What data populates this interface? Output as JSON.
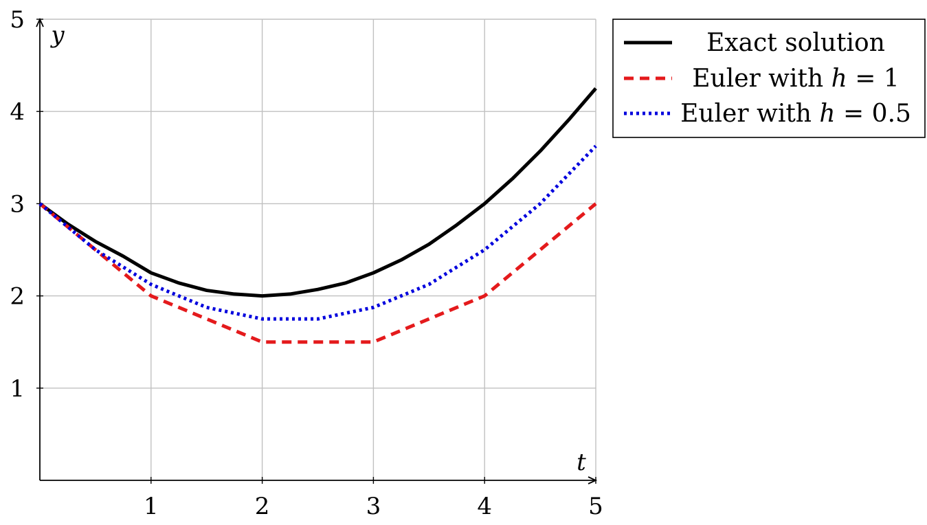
{
  "chart_data": {
    "type": "line",
    "xlabel": "t",
    "ylabel": "y",
    "xlim": [
      0,
      5
    ],
    "ylim": [
      0,
      5
    ],
    "x_ticks": [
      1,
      2,
      3,
      4,
      5
    ],
    "y_ticks": [
      1,
      2,
      3,
      4,
      5
    ],
    "x_tick_labels": [
      "1",
      "2",
      "3",
      "4",
      "5"
    ],
    "y_tick_labels": [
      "1",
      "2",
      "3",
      "4",
      "5"
    ],
    "grid": true,
    "legend_position": "outside-top-right",
    "series": [
      {
        "name": "Exact solution",
        "color": "#000000",
        "style": "solid",
        "x": [
          0,
          0.25,
          0.5,
          0.75,
          1,
          1.25,
          1.5,
          1.75,
          2,
          2.25,
          2.5,
          2.75,
          3,
          3.25,
          3.5,
          3.75,
          4,
          4.25,
          4.5,
          4.75,
          5
        ],
        "y": [
          3,
          2.78,
          2.59,
          2.43,
          2.25,
          2.14,
          2.06,
          2.02,
          2,
          2.02,
          2.07,
          2.14,
          2.25,
          2.39,
          2.56,
          2.77,
          3,
          3.27,
          3.57,
          3.9,
          4.25
        ]
      },
      {
        "name": "Euler with h = 1",
        "color": "#e41a1c",
        "style": "dashed",
        "x": [
          0,
          1,
          2,
          3,
          4,
          5
        ],
        "y": [
          3,
          2,
          1.5,
          1.5,
          2,
          3
        ]
      },
      {
        "name": "Euler with h = 0.5",
        "color": "#0000dd",
        "style": "dotted",
        "x": [
          0,
          0.5,
          1,
          1.5,
          2,
          2.5,
          3,
          3.5,
          4,
          4.5,
          5
        ],
        "y": [
          3,
          2.5,
          2.125,
          1.875,
          1.75,
          1.75,
          1.875,
          2.125,
          2.5,
          3,
          3.625
        ]
      }
    ],
    "legend": {
      "entries": [
        {
          "prefix": "Exact solution",
          "var": "",
          "suffix": ""
        },
        {
          "prefix": "Euler with ",
          "var": "h",
          "suffix": " = 1"
        },
        {
          "prefix": "Euler with ",
          "var": "h",
          "suffix": " = 0.5"
        }
      ]
    }
  }
}
